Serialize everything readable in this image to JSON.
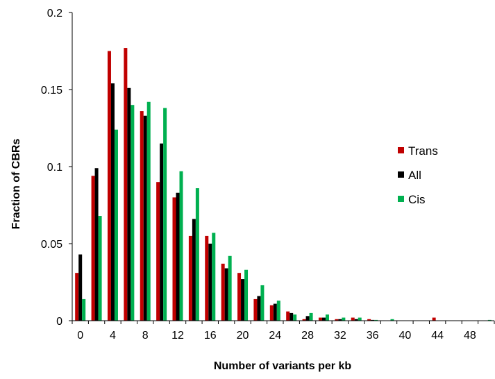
{
  "chart_data": {
    "type": "bar",
    "title": "",
    "xlabel": "Number of variants per kb",
    "ylabel": "Fraction of CBRs",
    "ylim": [
      0,
      0.2
    ],
    "y_ticks": [
      "0",
      "0.05",
      "0.1",
      "0.15",
      "0.2"
    ],
    "x_ticks": [
      "0",
      "4",
      "8",
      "12",
      "16",
      "20",
      "24",
      "28",
      "32",
      "36",
      "40",
      "44",
      "48"
    ],
    "categories": [
      "0",
      "2",
      "4",
      "6",
      "8",
      "10",
      "12",
      "14",
      "16",
      "18",
      "20",
      "22",
      "24",
      "26",
      "28",
      "30",
      "32",
      "34",
      "36",
      "38",
      "40",
      "42",
      "44",
      "46",
      "48",
      "50"
    ],
    "grid": false,
    "legend_position": "right",
    "series": [
      {
        "name": "Trans",
        "color": "#c00000",
        "values": [
          0.031,
          0.094,
          0.175,
          0.177,
          0.136,
          0.09,
          0.08,
          0.055,
          0.055,
          0.037,
          0.031,
          0.014,
          0.01,
          0.006,
          0.001,
          0.002,
          0.001,
          0.002,
          0.001,
          0.0,
          0.0,
          0.0,
          0.002,
          0.0,
          0.0,
          0.0
        ]
      },
      {
        "name": "All",
        "color": "#000000",
        "values": [
          0.043,
          0.099,
          0.154,
          0.151,
          0.133,
          0.115,
          0.083,
          0.066,
          0.05,
          0.034,
          0.027,
          0.016,
          0.011,
          0.005,
          0.003,
          0.002,
          0.001,
          0.001,
          0.0005,
          0.0,
          0.0,
          0.0,
          0.0,
          0.0,
          0.0,
          0.0
        ]
      },
      {
        "name": "Cis",
        "color": "#00b050",
        "values": [
          0.014,
          0.068,
          0.124,
          0.14,
          0.142,
          0.138,
          0.097,
          0.086,
          0.057,
          0.042,
          0.033,
          0.023,
          0.013,
          0.004,
          0.005,
          0.004,
          0.002,
          0.002,
          0.0005,
          0.001,
          0.0,
          0.0,
          0.0,
          0.0,
          0.0,
          0.0005
        ]
      }
    ]
  }
}
